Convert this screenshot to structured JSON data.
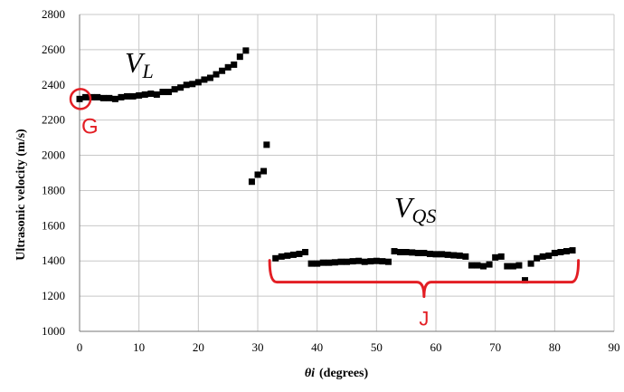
{
  "chart_data": {
    "type": "scatter",
    "xlabel_parts": {
      "main": "θ",
      "sub": "i",
      "rest": "(degrees)"
    },
    "ylabel": "Ultrasonic velocity (m/s)",
    "xlim": [
      0,
      90
    ],
    "ylim": [
      1000,
      2800
    ],
    "xticks": [
      0,
      10,
      20,
      30,
      40,
      50,
      60,
      70,
      80,
      90
    ],
    "yticks": [
      1000,
      1200,
      1400,
      1600,
      1800,
      2000,
      2200,
      2400,
      2600,
      2800
    ],
    "grid": true,
    "marker_color": "#000000",
    "series": [
      {
        "points": [
          [
            0,
            2320
          ],
          [
            1,
            2330
          ],
          [
            2,
            2330
          ],
          [
            3,
            2330
          ],
          [
            4,
            2325
          ],
          [
            5,
            2325
          ],
          [
            6,
            2320
          ],
          [
            7,
            2330
          ],
          [
            8,
            2335
          ],
          [
            9,
            2335
          ],
          [
            10,
            2340
          ],
          [
            11,
            2345
          ],
          [
            12,
            2350
          ],
          [
            13,
            2345
          ],
          [
            14,
            2360
          ],
          [
            15,
            2360
          ],
          [
            16,
            2375
          ],
          [
            17,
            2385
          ],
          [
            18,
            2400
          ],
          [
            19,
            2405
          ],
          [
            20,
            2415
          ],
          [
            21,
            2430
          ],
          [
            22,
            2440
          ],
          [
            23,
            2460
          ],
          [
            24,
            2480
          ],
          [
            25,
            2500
          ],
          [
            26,
            2515
          ],
          [
            27,
            2560
          ],
          [
            28,
            2595
          ]
        ]
      },
      {
        "points": [
          [
            29,
            1850
          ],
          [
            30,
            1890
          ],
          [
            31,
            1910
          ],
          [
            31.5,
            2060
          ]
        ]
      },
      {
        "points": [
          [
            33,
            1415
          ],
          [
            34,
            1425
          ],
          [
            35,
            1430
          ],
          [
            36,
            1435
          ],
          [
            37,
            1440
          ],
          [
            38,
            1450
          ],
          [
            39,
            1385
          ],
          [
            40,
            1385
          ],
          [
            41,
            1390
          ],
          [
            42,
            1390
          ],
          [
            43,
            1392
          ],
          [
            44,
            1395
          ],
          [
            45,
            1395
          ],
          [
            46,
            1398
          ],
          [
            47,
            1400
          ],
          [
            48,
            1395
          ],
          [
            49,
            1398
          ],
          [
            50,
            1400
          ],
          [
            51,
            1398
          ],
          [
            52,
            1395
          ],
          [
            53,
            1455
          ],
          [
            54,
            1450
          ],
          [
            55,
            1450
          ],
          [
            56,
            1448
          ],
          [
            57,
            1445
          ],
          [
            58,
            1445
          ],
          [
            59,
            1440
          ],
          [
            60,
            1438
          ],
          [
            61,
            1438
          ],
          [
            62,
            1435
          ],
          [
            63,
            1432
          ],
          [
            64,
            1430
          ],
          [
            65,
            1425
          ],
          [
            66,
            1375
          ],
          [
            67,
            1375
          ],
          [
            68,
            1370
          ],
          [
            69,
            1380
          ],
          [
            70,
            1420
          ],
          [
            71,
            1425
          ],
          [
            72,
            1370
          ],
          [
            73,
            1370
          ],
          [
            74,
            1375
          ],
          [
            75,
            1290
          ],
          [
            76,
            1385
          ],
          [
            77,
            1415
          ],
          [
            78,
            1425
          ],
          [
            79,
            1430
          ],
          [
            80,
            1445
          ],
          [
            81,
            1450
          ],
          [
            82,
            1455
          ],
          [
            83,
            1460
          ]
        ]
      }
    ],
    "annotations": {
      "VL": {
        "main": "V",
        "sub": "L"
      },
      "VQS": {
        "main": "V",
        "sub": "QS"
      },
      "G": {
        "text": "G",
        "at": [
          0,
          2320
        ],
        "color": "#e31e24"
      },
      "J": {
        "text": "J",
        "range": [
          32,
          84
        ],
        "at_y": 1300,
        "color": "#e31e24"
      }
    }
  }
}
